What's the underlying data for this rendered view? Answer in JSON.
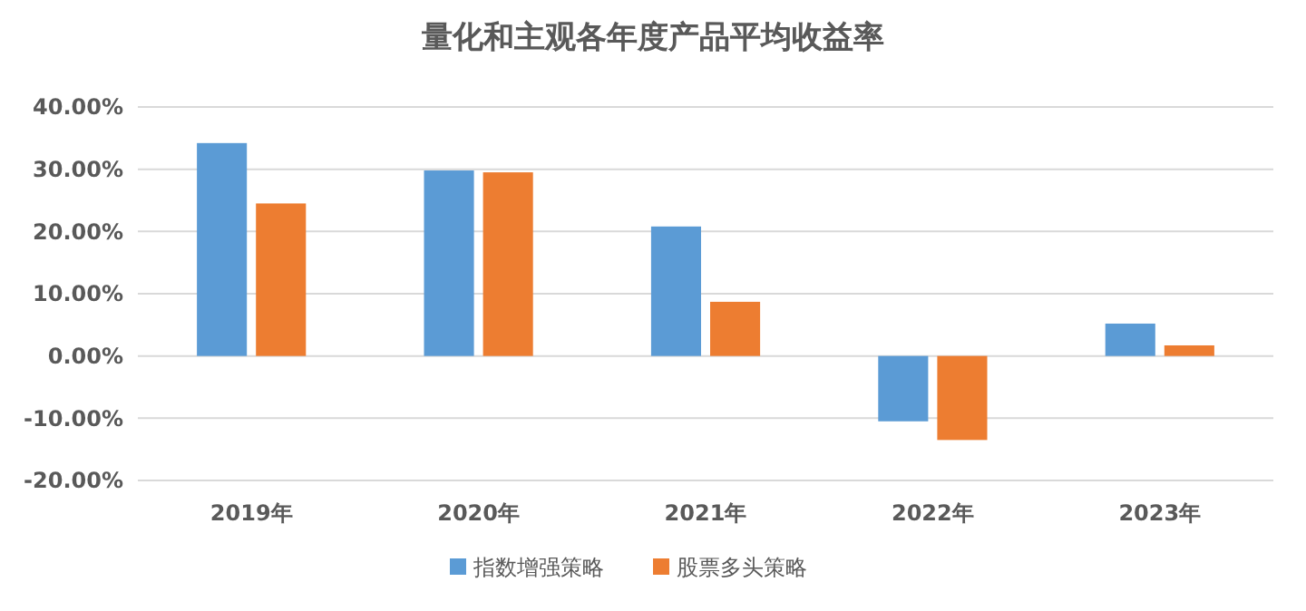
{
  "chart_data": {
    "type": "bar",
    "title": "量化和主观各年度产品平均收益率",
    "categories": [
      "2019年",
      "2020年",
      "2021年",
      "2022年",
      "2023年"
    ],
    "series": [
      {
        "name": "指数增强策略",
        "color": "#5b9bd5",
        "values": [
          34.2,
          29.8,
          20.8,
          -10.5,
          5.2
        ]
      },
      {
        "name": "股票多头策略",
        "color": "#ed7d31",
        "values": [
          24.5,
          29.5,
          8.7,
          -13.5,
          1.7
        ]
      }
    ],
    "ylim": [
      -20,
      40
    ],
    "yticks": [
      {
        "value": -20,
        "label": "-20.00%"
      },
      {
        "value": -10,
        "label": "-10.00%"
      },
      {
        "value": 0,
        "label": "0.00%"
      },
      {
        "value": 10,
        "label": "10.00%"
      },
      {
        "value": 20,
        "label": "20.00%"
      },
      {
        "value": 30,
        "label": "30.00%"
      },
      {
        "value": 40,
        "label": "40.00%"
      }
    ],
    "grid": "y",
    "legend": "bottom"
  }
}
